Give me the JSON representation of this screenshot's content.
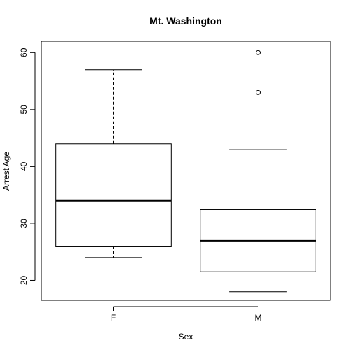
{
  "chart_data": {
    "type": "box",
    "title": "Mt. Washington",
    "xlabel": "Sex",
    "ylabel": "Arrest Age",
    "ylim": [
      16.5,
      62
    ],
    "yticks": [
      20,
      30,
      40,
      50,
      60
    ],
    "grid": false,
    "categories": [
      "F",
      "M"
    ],
    "boxes": [
      {
        "category": "F",
        "whisker_low": 24,
        "q1": 26,
        "median": 34,
        "q3": 44,
        "whisker_high": 57,
        "outliers": []
      },
      {
        "category": "M",
        "whisker_low": 18,
        "q1": 21.5,
        "median": 27,
        "q3": 32.5,
        "whisker_high": 43,
        "outliers": [
          53,
          60
        ]
      }
    ]
  }
}
